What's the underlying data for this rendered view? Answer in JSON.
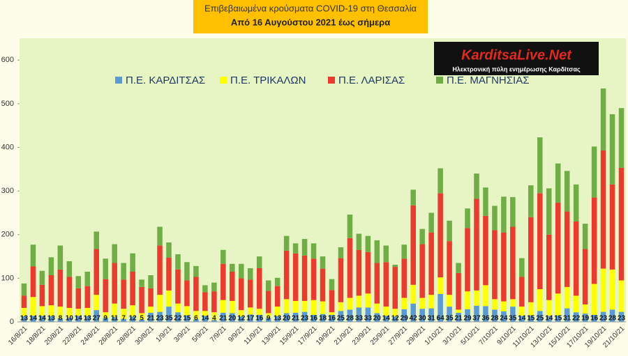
{
  "chart_data": {
    "type": "stacked_bar",
    "title": "Επιβεβαιωμένα κρούσματα COVID-19 στη Θεσσαλία",
    "subtitle": "Από 16 Αυγούστου 2021 έως σήμερα",
    "logo": {
      "name": "KarditsaLive.Net",
      "tagline": "Ηλεκτρονική πύλη ενημέρωσης Καρδίτσας"
    },
    "legend": "top",
    "ylim": [
      0,
      650
    ],
    "yticks": [
      0,
      100,
      200,
      300,
      400,
      500,
      600
    ],
    "categories": [
      "16/8/21",
      null,
      "18/8/21",
      null,
      "20/8/21",
      null,
      "22/8/21",
      null,
      "24/8/21",
      null,
      "26/8/21",
      null,
      "28/8/21",
      null,
      "30/8/21",
      null,
      "1/9/21",
      null,
      "3/9/21",
      null,
      "5/9/21",
      null,
      "7/9/21",
      null,
      "9/9/21",
      null,
      "11/9/21",
      null,
      "13/9/21",
      null,
      "15/9/21",
      null,
      "17/9/21",
      null,
      "19/9/21",
      null,
      "21/9/21",
      null,
      "23/9/21",
      null,
      "25/9/21",
      null,
      "27/9/21",
      null,
      "29/9/21",
      null,
      "1/10/21",
      null,
      "3/10/21",
      null,
      "5/10/21",
      null,
      "7/10/21",
      null,
      "9/10/21",
      null,
      "11/10/21",
      null,
      "13/10/21",
      null,
      "15/10/21",
      null,
      "17/10/21",
      null,
      "19/10/21",
      null,
      "21/10/21"
    ],
    "series": [
      {
        "name": "Π.Ε. ΚΑΡΔΙΤΣΑΣ",
        "color": "#5b9bd5",
        "labels": true,
        "values": [
          13,
          14,
          14,
          13,
          8,
          10,
          14,
          13,
          27,
          9,
          11,
          7,
          12,
          5,
          21,
          23,
          35,
          22,
          15,
          6,
          14,
          4,
          21,
          20,
          12,
          17,
          16,
          9,
          13,
          20,
          21,
          23,
          16,
          18,
          16,
          25,
          28,
          33,
          33,
          20,
          14,
          12,
          29,
          42,
          30,
          31,
          64,
          35,
          21,
          29,
          37,
          36,
          28,
          24,
          35,
          14,
          15,
          25,
          14,
          15,
          31,
          22,
          19,
          16,
          23,
          28,
          23
        ]
      },
      {
        "name": "Π.Ε. ΤΡΙΚΑΛΩΝ",
        "color": "#ffff00",
        "values": [
          19,
          43,
          22,
          25,
          27,
          22,
          16,
          19,
          35,
          13,
          31,
          23,
          26,
          15,
          14,
          39,
          37,
          20,
          21,
          19,
          11,
          18,
          29,
          28,
          15,
          16,
          14,
          11,
          22,
          32,
          27,
          25,
          34,
          29,
          6,
          20,
          27,
          27,
          32,
          22,
          21,
          18,
          26,
          43,
          25,
          31,
          38,
          27,
          7,
          41,
          35,
          48,
          24,
          23,
          17,
          21,
          30,
          50,
          36,
          50,
          49,
          38,
          21,
          71,
          99,
          92,
          72
        ]
      },
      {
        "name": "Π.Ε. ΛΑΡΙΣΑΣ",
        "color": "#ec3a2e",
        "values": [
          28,
          70,
          49,
          69,
          85,
          71,
          47,
          50,
          105,
          76,
          93,
          67,
          77,
          60,
          42,
          113,
          75,
          78,
          59,
          78,
          43,
          48,
          83,
          67,
          73,
          64,
          93,
          51,
          47,
          111,
          109,
          104,
          95,
          75,
          51,
          101,
          137,
          105,
          95,
          93,
          102,
          96,
          90,
          182,
          123,
          143,
          193,
          123,
          84,
          145,
          210,
          159,
          158,
          158,
          166,
          68,
          195,
          220,
          150,
          208,
          173,
          170,
          127,
          198,
          271,
          195,
          258
        ]
      },
      {
        "name": "Π.Ε. ΜΑΓΝΗΣΙΑΣ",
        "color": "#70ad47",
        "values": [
          28,
          50,
          32,
          41,
          55,
          36,
          28,
          33,
          40,
          47,
          43,
          38,
          42,
          17,
          30,
          43,
          35,
          35,
          42,
          25,
          16,
          20,
          32,
          18,
          33,
          26,
          27,
          24,
          19,
          34,
          23,
          38,
          35,
          28,
          25,
          25,
          54,
          37,
          37,
          52,
          38,
          5,
          32,
          36,
          35,
          45,
          57,
          47,
          23,
          45,
          58,
          65,
          56,
          82,
          68,
          43,
          73,
          128,
          106,
          90,
          93,
          85,
          58,
          117,
          142,
          161,
          137
        ]
      }
    ]
  }
}
